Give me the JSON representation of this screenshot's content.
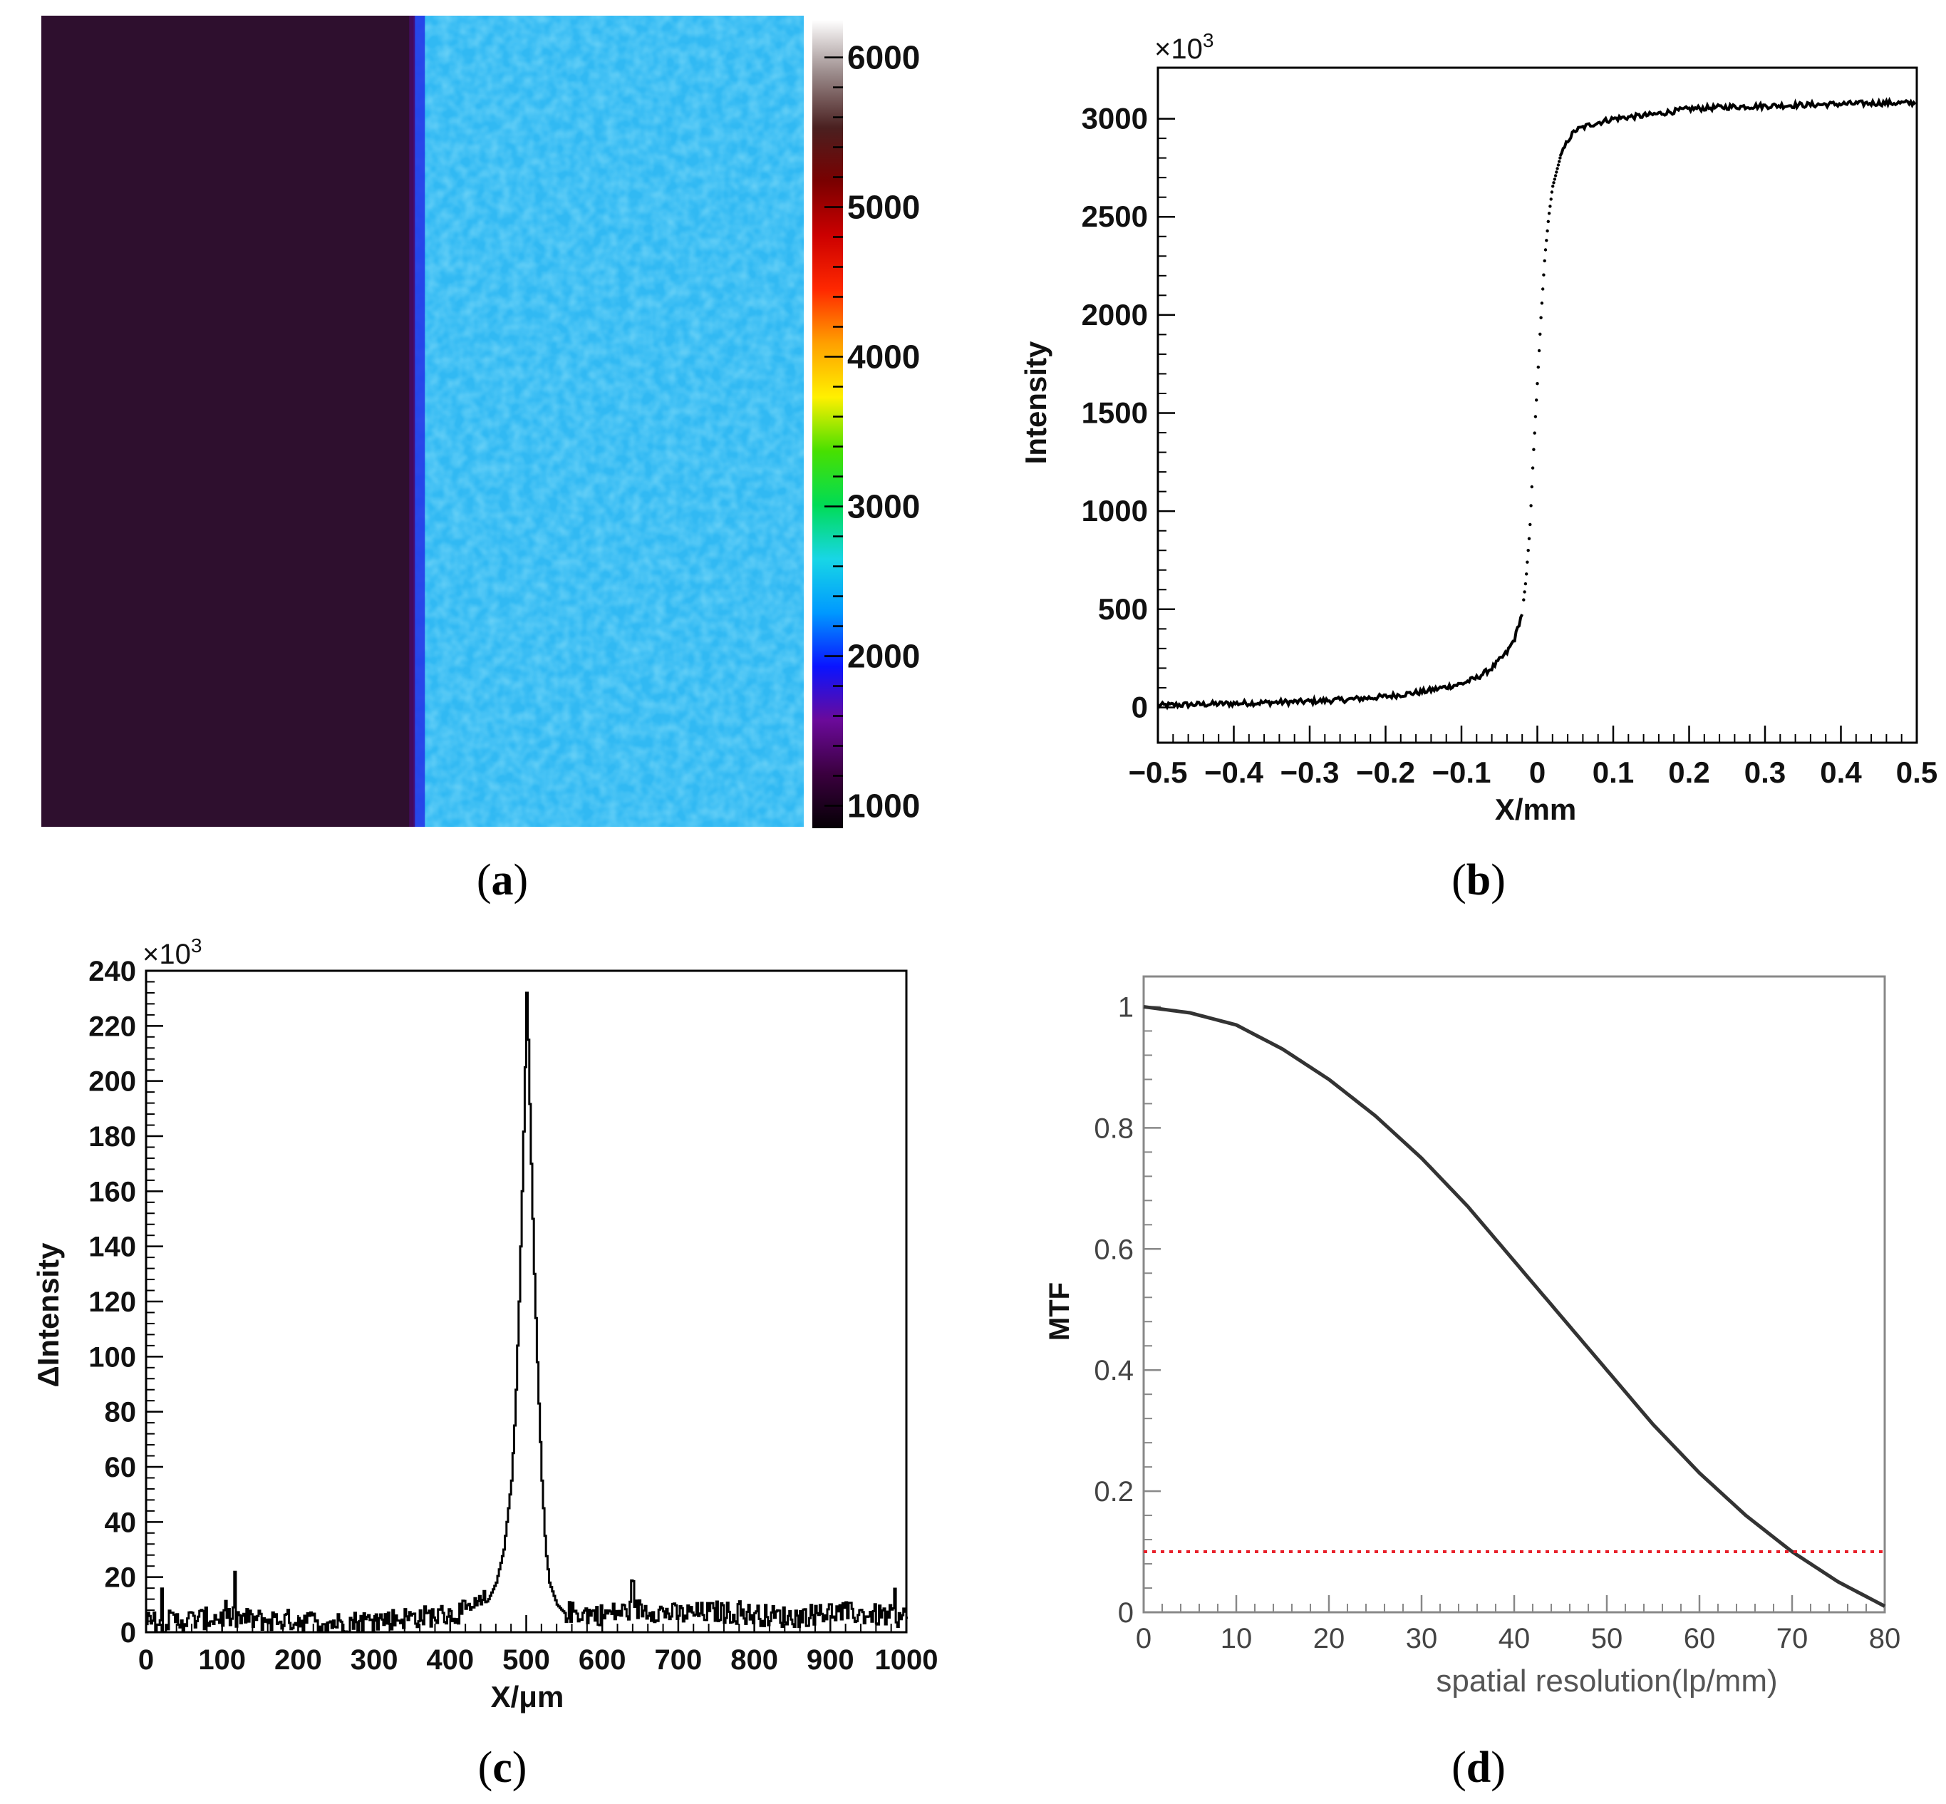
{
  "chart_data": [
    {
      "panel": "a",
      "type": "heatmap",
      "caption_letter": "a",
      "colorbar_ticks": [
        "1000",
        "2000",
        "3000",
        "4000",
        "5000",
        "6000"
      ],
      "colorbar_range": [
        850,
        6250
      ],
      "regions": [
        {
          "x_fraction": [
            0.0,
            0.49
          ],
          "value": 1000,
          "color": "#2e0f2e"
        },
        {
          "x_fraction": [
            0.49,
            1.0
          ],
          "value": 2450,
          "color": "#31b9f3"
        }
      ],
      "colormap": [
        "#050005",
        "#3a003e",
        "#6b0a9a",
        "#0a14ff",
        "#0099ff",
        "#18d6e6",
        "#00dc55",
        "#48e000",
        "#fff000",
        "#ffa000",
        "#ff2800",
        "#cc0000",
        "#7a0000",
        "#4a2020",
        "#9a8a8a",
        "#ffffff"
      ]
    },
    {
      "panel": "b",
      "type": "line",
      "caption_letter": "b",
      "xlabel": "X/mm",
      "ylabel": "Intensity",
      "exponent_base": "×10",
      "exponent_power": "3",
      "xlim": [
        -0.5,
        0.5
      ],
      "ylim": [
        -180,
        3260
      ],
      "xticks": [
        "−0.5",
        "−0.4",
        "−0.3",
        "−0.2",
        "−0.1",
        "0",
        "0.1",
        "0.2",
        "0.3",
        "0.4",
        "0.5"
      ],
      "yticks": [
        "0",
        "500",
        "1000",
        "1500",
        "2000",
        "2500",
        "3000"
      ],
      "series": [
        {
          "x": [
            -0.5,
            -0.45,
            -0.4,
            -0.35,
            -0.3,
            -0.25,
            -0.2,
            -0.15,
            -0.1,
            -0.08,
            -0.06,
            -0.04,
            -0.03,
            -0.02,
            -0.015,
            -0.01,
            -0.005,
            0.0,
            0.005,
            0.01,
            0.015,
            0.02,
            0.03,
            0.04,
            0.05,
            0.07,
            0.1,
            0.15,
            0.2,
            0.25,
            0.3,
            0.35,
            0.4,
            0.45,
            0.5
          ],
          "values": [
            10,
            15,
            20,
            25,
            30,
            40,
            55,
            80,
            120,
            150,
            200,
            280,
            350,
            480,
            650,
            900,
            1300,
            1650,
            2000,
            2300,
            2500,
            2650,
            2800,
            2890,
            2940,
            2970,
            3000,
            3020,
            3050,
            3060,
            3065,
            3070,
            3075,
            3080,
            3080
          ]
        }
      ]
    },
    {
      "panel": "c",
      "type": "line",
      "caption_letter": "c",
      "xlabel": "X/μm",
      "ylabel": "ΔIntensity",
      "exponent_base": "×10",
      "exponent_power": "3",
      "xlim": [
        0,
        1000
      ],
      "ylim": [
        0,
        240
      ],
      "xticks": [
        "0",
        "100",
        "200",
        "300",
        "400",
        "500",
        "600",
        "700",
        "800",
        "900",
        "1000"
      ],
      "yticks": [
        "0",
        "20",
        "40",
        "60",
        "80",
        "100",
        "120",
        "140",
        "160",
        "180",
        "200",
        "220",
        "240"
      ],
      "series": [
        {
          "x": [
            0,
            50,
            100,
            150,
            200,
            250,
            300,
            350,
            400,
            430,
            450,
            460,
            470,
            480,
            485,
            490,
            495,
            498,
            500,
            502,
            505,
            510,
            515,
            520,
            525,
            530,
            540,
            550,
            600,
            650,
            700,
            750,
            800,
            850,
            900,
            950,
            1000
          ],
          "values": [
            3,
            4,
            5,
            4,
            4,
            3,
            4,
            5,
            6,
            8,
            12,
            18,
            30,
            55,
            80,
            120,
            170,
            205,
            232,
            215,
            180,
            130,
            90,
            55,
            30,
            18,
            10,
            7,
            6,
            8,
            6,
            7,
            6,
            5,
            7,
            6,
            5
          ]
        }
      ]
    },
    {
      "panel": "d",
      "type": "line",
      "caption_letter": "d",
      "xlabel": "spatial resolution(lp/mm)",
      "ylabel": "MTF",
      "xlim": [
        0,
        80
      ],
      "ylim": [
        0,
        1.05
      ],
      "xticks": [
        "0",
        "10",
        "20",
        "30",
        "40",
        "50",
        "60",
        "70",
        "80"
      ],
      "yticks": [
        "0",
        "0.2",
        "0.4",
        "0.6",
        "0.8",
        "1"
      ],
      "series": [
        {
          "x": [
            0,
            5,
            10,
            15,
            20,
            25,
            30,
            35,
            40,
            45,
            50,
            55,
            60,
            65,
            70,
            75,
            80
          ],
          "values": [
            1.0,
            0.99,
            0.97,
            0.93,
            0.88,
            0.82,
            0.75,
            0.67,
            0.58,
            0.49,
            0.4,
            0.31,
            0.23,
            0.16,
            0.1,
            0.05,
            0.01
          ]
        }
      ],
      "threshold": {
        "y": 0.1,
        "color": "#e8202a"
      }
    }
  ]
}
